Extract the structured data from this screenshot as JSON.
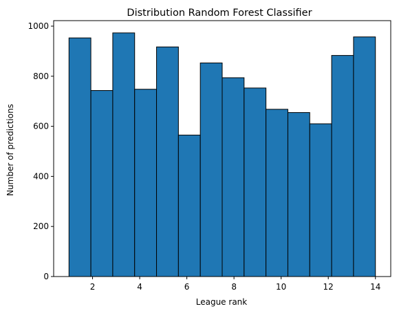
{
  "chart_data": {
    "type": "bar",
    "title": "Distribution Random Forest Classifier",
    "xlabel": "League rank",
    "ylabel": "Number of predictions",
    "bin_range": [
      1,
      14
    ],
    "bins": 14,
    "values": [
      953,
      743,
      973,
      748,
      917,
      565,
      853,
      794,
      753,
      668,
      655,
      610,
      883,
      957
    ],
    "xlim": [
      0.35,
      14.65
    ],
    "ylim": [
      0,
      1022
    ],
    "xticks": [
      2,
      4,
      6,
      8,
      10,
      12,
      14
    ],
    "yticks": [
      0,
      200,
      400,
      600,
      800,
      1000
    ],
    "grid": false,
    "bar_color": "#1f77b4",
    "edge_color": "#000000"
  }
}
